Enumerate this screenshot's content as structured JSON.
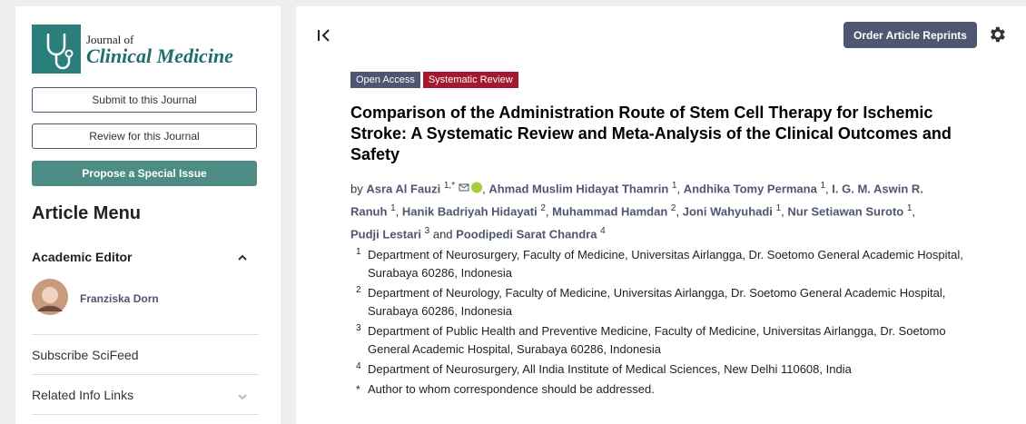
{
  "sidebar": {
    "journal": {
      "line1": "Journal of",
      "line2": "Clinical Medicine"
    },
    "buttons": [
      "Submit to this Journal",
      "Review for this Journal",
      "Propose a Special Issue"
    ],
    "menu_title": "Article Menu",
    "editor_section": {
      "title": "Academic Editor",
      "name": "Franziska Dorn"
    },
    "links": [
      "Subscribe SciFeed",
      "Related Info Links"
    ]
  },
  "toolbar": {
    "reprints": "Order Article Reprints"
  },
  "article": {
    "badges": [
      "Open Access",
      "Systematic Review"
    ],
    "title": "Comparison of the Administration Route of Stem Cell Therapy for Ischemic Stroke: A Systematic Review and Meta-Analysis of the Clinical Outcomes and Safety",
    "by": "by",
    "authors": [
      {
        "name": "Asra Al Fauzi",
        "sup": "1,*",
        "sep": ","
      },
      {
        "name": "Ahmad Muslim Hidayat Thamrin",
        "sup": "1",
        "sep": ","
      },
      {
        "name": "Andhika Tomy Permana",
        "sup": "1",
        "sep": ","
      },
      {
        "name": "I. G. M. Aswin R. Ranuh",
        "sup": "1",
        "sep": ","
      },
      {
        "name": "Hanik Badriyah Hidayati",
        "sup": "2",
        "sep": ","
      },
      {
        "name": "Muhammad Hamdan",
        "sup": "2",
        "sep": ","
      },
      {
        "name": "Joni Wahyuhadi",
        "sup": "1",
        "sep": ","
      },
      {
        "name": "Nur Setiawan Suroto",
        "sup": "1",
        "sep": ","
      },
      {
        "name": "Pudji Lestari",
        "sup": "3",
        "sep": "and"
      },
      {
        "name": "Poodipedi Sarat Chandra",
        "sup": "4"
      }
    ],
    "affiliations": [
      {
        "num": "1",
        "text": "Department of Neurosurgery, Faculty of Medicine, Universitas Airlangga, Dr. Soetomo General Academic Hospital, Surabaya 60286, Indonesia"
      },
      {
        "num": "2",
        "text": "Department of Neurology, Faculty of Medicine, Universitas Airlangga, Dr. Soetomo General Academic Hospital, Surabaya 60286, Indonesia"
      },
      {
        "num": "3",
        "text": "Department of Public Health and Preventive Medicine, Faculty of Medicine, Universitas Airlangga, Dr. Soetomo General Academic Hospital, Surabaya 60286, Indonesia"
      },
      {
        "num": "4",
        "text": "Department of Neurosurgery, All India Institute of Medical Sciences, New Delhi 110608, India"
      }
    ],
    "note": {
      "mark": "*",
      "text": "Author to whom correspondence should be addressed."
    }
  }
}
